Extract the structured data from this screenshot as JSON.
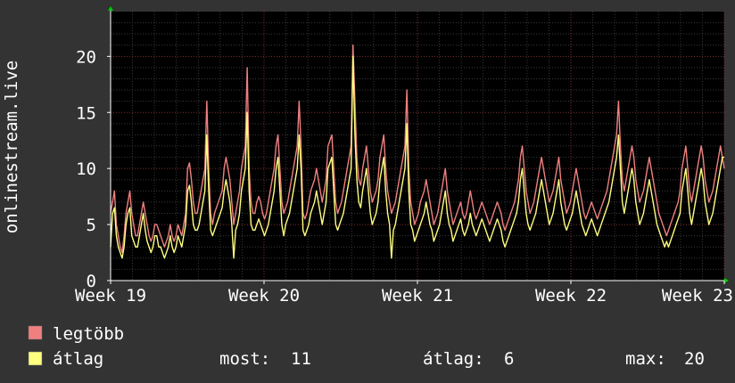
{
  "chart_data": {
    "type": "line",
    "ylabel": "onlinestream.live",
    "ylim": [
      0,
      24
    ],
    "yticks": [
      "0",
      "5",
      "10",
      "15",
      "20"
    ],
    "xticks": [
      "Week 19",
      "Week 20",
      "Week 21",
      "Week 22",
      "Week 23"
    ],
    "grid": true,
    "background": "#000000",
    "series": [
      {
        "name": "legtöbb",
        "color": "#f08080",
        "values": [
          6,
          7,
          8,
          5,
          4,
          3,
          2.5,
          4,
          6,
          7,
          8,
          6,
          5,
          4,
          4,
          5,
          6,
          7,
          6,
          5,
          4,
          3.5,
          4,
          5,
          5,
          4.5,
          4,
          3.5,
          3,
          3.5,
          4,
          5,
          4,
          3.5,
          4,
          5,
          4.5,
          4,
          5,
          6,
          10,
          10.5,
          9,
          7,
          6,
          6,
          7,
          8,
          9,
          10,
          16,
          10,
          6,
          5,
          6,
          6.5,
          7,
          7.5,
          8,
          10,
          11,
          10,
          9,
          7,
          5,
          6,
          7,
          8,
          10,
          11,
          12,
          19,
          10,
          7,
          6,
          6,
          7,
          7.5,
          7,
          6,
          5.5,
          6,
          7,
          8,
          9,
          10,
          12,
          13,
          10,
          7,
          6,
          6.5,
          7,
          8,
          9,
          10,
          11,
          12,
          16,
          12,
          6,
          5.5,
          6,
          7,
          8,
          8.5,
          9,
          10,
          9,
          8,
          7,
          8,
          9,
          12,
          12.5,
          13,
          10,
          7,
          6,
          6.5,
          7,
          8,
          9,
          10,
          11,
          12,
          21,
          16,
          11,
          9,
          8.5,
          10,
          11,
          12,
          10,
          8,
          7,
          7.5,
          8,
          9,
          11,
          12,
          13,
          10,
          8,
          7,
          6,
          6.5,
          7,
          8,
          9,
          10,
          11,
          12,
          17,
          10,
          7,
          6,
          5,
          5.5,
          6,
          7,
          7.5,
          8,
          9,
          8,
          7,
          6,
          5,
          5.5,
          6,
          7,
          8,
          9,
          10,
          8,
          7,
          6,
          5,
          5.5,
          6,
          6.5,
          7,
          6,
          5.5,
          6,
          7,
          8,
          7,
          6,
          5.5,
          6,
          6.5,
          7,
          6.5,
          6,
          5.5,
          5,
          5.5,
          6,
          6.5,
          7,
          6.5,
          6,
          5,
          4.5,
          5,
          5.5,
          6,
          6.5,
          7,
          8,
          9,
          11,
          12,
          10,
          8,
          7,
          6,
          6.5,
          7,
          8,
          9,
          10,
          11,
          10,
          9,
          8,
          7,
          7.5,
          8,
          9,
          10,
          11,
          9,
          8,
          7,
          6,
          6.5,
          7,
          8,
          9,
          10,
          9,
          8,
          7,
          6,
          5.5,
          6,
          6.5,
          7,
          6.5,
          6,
          5.5,
          6,
          6.5,
          7,
          7.5,
          8,
          9,
          10,
          11,
          12,
          13,
          16,
          12,
          9,
          8,
          9,
          10,
          11,
          12,
          11,
          9,
          8,
          7,
          7.5,
          8,
          9,
          10,
          11,
          10,
          9,
          8,
          7,
          6,
          5.5,
          5,
          4.5,
          4,
          4.5,
          5,
          5.5,
          6,
          6.5,
          7,
          8,
          10,
          11,
          12,
          10,
          8,
          7,
          8,
          9,
          10,
          11,
          12,
          11,
          9,
          8,
          7,
          7.5,
          8,
          9,
          10,
          11,
          12,
          11,
          10
        ]
      },
      {
        "name": "átlag",
        "color": "#ffff80",
        "values": [
          3,
          6,
          6.5,
          4,
          3,
          2.5,
          2,
          3,
          5,
          6,
          6.5,
          4,
          3.5,
          3,
          3,
          4,
          5,
          6,
          4.5,
          3.5,
          3,
          2.5,
          3,
          4,
          4,
          3,
          3,
          2.5,
          2,
          2.5,
          3,
          4,
          3,
          2.5,
          3,
          4,
          3.5,
          3,
          4,
          5,
          8,
          8.5,
          7,
          5,
          4.5,
          4.5,
          5,
          6,
          7,
          8,
          13,
          8,
          4.5,
          4,
          4.5,
          5,
          5.5,
          6,
          6.5,
          8,
          9,
          8,
          7,
          5,
          2,
          4.5,
          5,
          6,
          8,
          9,
          10,
          15,
          8,
          5,
          4.5,
          4.5,
          5,
          5.5,
          5,
          4.5,
          4,
          4.5,
          5,
          6,
          7,
          8,
          10,
          11,
          8,
          5,
          4,
          5,
          5.5,
          6,
          7,
          8,
          9,
          10,
          13,
          10,
          4.5,
          4,
          4.5,
          5,
          6,
          6.5,
          7,
          8,
          7,
          6,
          5,
          6,
          7,
          10,
          10.5,
          11,
          8,
          5,
          4.5,
          5,
          5.5,
          6,
          7,
          8,
          9,
          10,
          20,
          13,
          9,
          7,
          6.5,
          8,
          9,
          10,
          8,
          6,
          5,
          5.5,
          6,
          7,
          9,
          10,
          11,
          8,
          6,
          5,
          2,
          4.5,
          5,
          6,
          7,
          8,
          9,
          10,
          14,
          8,
          5,
          4.5,
          3.5,
          4,
          4.5,
          5,
          5.5,
          6,
          7,
          6,
          5,
          4.5,
          3.5,
          4,
          4.5,
          5,
          6,
          7,
          8,
          6,
          5,
          4.5,
          3.5,
          4,
          4.5,
          5,
          5.5,
          4.5,
          4,
          4.5,
          5,
          6,
          5,
          4.5,
          4,
          4.5,
          5,
          5.5,
          5,
          4.5,
          4,
          3.5,
          4,
          4.5,
          5,
          5.5,
          5,
          4.5,
          3.5,
          3,
          3.5,
          4,
          4.5,
          5,
          5.5,
          6,
          7,
          9,
          10,
          8,
          6,
          5,
          4.5,
          5,
          5.5,
          6,
          7,
          8,
          9,
          8,
          7,
          6,
          5,
          5.5,
          6,
          7,
          8,
          9,
          7,
          6,
          5,
          4.5,
          5,
          5.5,
          6,
          7,
          8,
          7,
          6,
          5,
          4.5,
          4,
          4.5,
          5,
          5.5,
          5,
          4.5,
          4,
          4.5,
          5,
          5.5,
          6,
          6.5,
          7,
          8,
          9,
          10,
          11,
          13,
          10,
          7,
          6,
          7,
          8,
          9,
          10,
          9,
          7,
          6,
          5,
          5.5,
          6,
          7,
          8,
          9,
          8,
          7,
          6,
          5,
          4.5,
          4,
          3.5,
          3,
          3.5,
          3,
          3.5,
          4,
          4.5,
          5,
          5.5,
          6,
          8,
          9,
          10,
          8,
          6,
          5,
          6,
          7,
          8,
          9,
          10,
          9,
          7,
          6,
          5,
          5.5,
          6,
          7,
          8,
          9,
          10,
          11,
          11
        ]
      }
    ],
    "stats": {
      "most_label": "most:",
      "most_value": "11",
      "atlag_label": "átlag:",
      "atlag_value": "6",
      "max_label": "max:",
      "max_value": "20"
    }
  }
}
